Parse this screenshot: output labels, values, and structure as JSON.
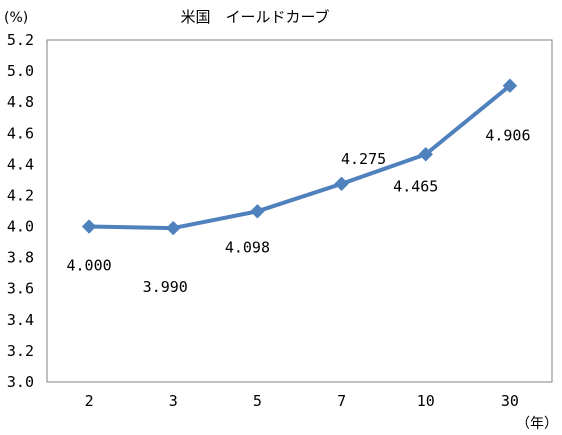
{
  "chart_data": {
    "type": "line",
    "title": "米国　イールドカーブ",
    "y_unit_label": "(%)",
    "x_unit_label": "（年）",
    "categories": [
      "2",
      "3",
      "5",
      "7",
      "10",
      "30"
    ],
    "series": [
      {
        "values": [
          4.0,
          3.99,
          4.098,
          4.275,
          4.465,
          4.906
        ],
        "data_labels": [
          "4.000",
          "3.990",
          "4.098",
          "4.275",
          "4.465",
          "4.906"
        ],
        "color": "#4f81bd",
        "marker": "diamond"
      }
    ],
    "ylim": [
      3.0,
      5.2
    ],
    "yticks": [
      "3.0",
      "3.2",
      "3.4",
      "3.6",
      "3.8",
      "4.0",
      "4.2",
      "4.4",
      "4.6",
      "4.8",
      "5.0",
      "5.2"
    ],
    "grid": false,
    "legend": "none"
  }
}
